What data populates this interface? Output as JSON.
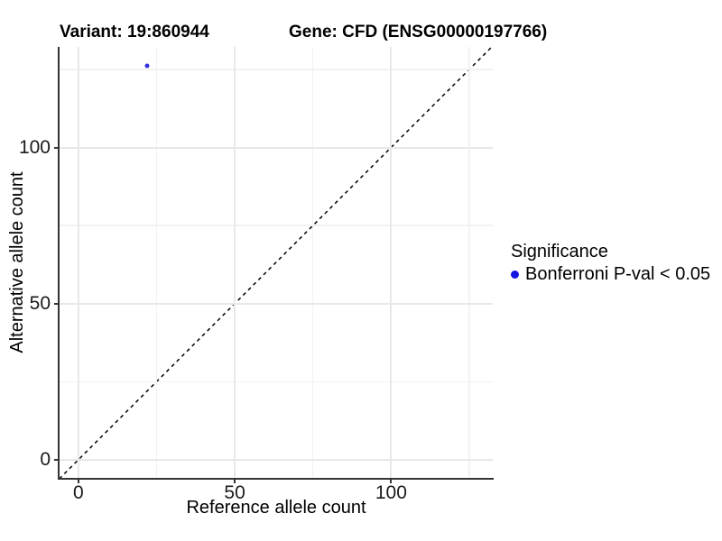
{
  "header": {
    "variant_title": "Variant: 19:860944",
    "gene_title": "Gene: CFD (ENSG00000197766)"
  },
  "chart_data": {
    "type": "scatter",
    "xlabel": "Reference allele count",
    "ylabel": "Alternative allele count",
    "xlim": [
      -6.0,
      132.5
    ],
    "ylim": [
      -5.8,
      132.2
    ],
    "x_ticks": [
      0,
      50,
      100
    ],
    "x_tick_labels": [
      "0",
      "50",
      "100"
    ],
    "y_ticks": [
      0,
      50,
      100
    ],
    "y_tick_labels": [
      "0",
      "50",
      "100"
    ],
    "x_minor_ticks": [
      25,
      75,
      125
    ],
    "y_minor_ticks": [
      25,
      75,
      125
    ],
    "grid": {
      "major_color": "#e8e8e8",
      "minor_color": "#f2f2f2"
    },
    "axis_color": "#333333",
    "points": [
      {
        "x": 22,
        "y": 126,
        "color": "#2e2edd",
        "series": "Bonferroni P-val < 0.05"
      }
    ],
    "identity_line": {
      "slope": 1,
      "intercept": 0,
      "style": "dashed",
      "color": "#000000"
    },
    "legend": {
      "position": "right",
      "title": "Significance",
      "items": [
        {
          "label": "Bonferroni P-val < 0.05",
          "color": "#1515e0",
          "marker": "circle"
        }
      ]
    }
  }
}
